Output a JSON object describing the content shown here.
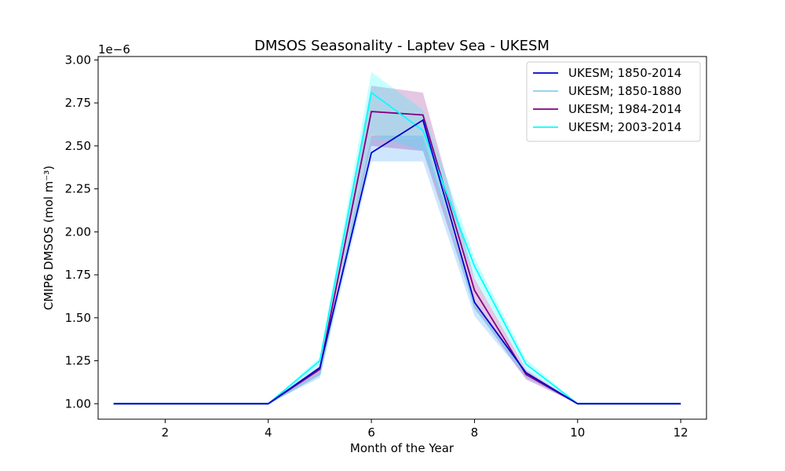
{
  "chart_data": {
    "type": "line",
    "title": "DMSOS Seasonality - Laptev Sea - UKESM",
    "xlabel": "Month of the Year",
    "ylabel": "CMIP6 DMSOS (mol m⁻³)",
    "y_offset_label": "1e−6",
    "xlim": [
      0.7,
      12.5
    ],
    "ylim": [
      0.91,
      3.02
    ],
    "xticks": [
      2,
      4,
      6,
      8,
      10,
      12
    ],
    "yticks": [
      1.0,
      1.25,
      1.5,
      1.75,
      2.0,
      2.25,
      2.5,
      2.75,
      3.0
    ],
    "ytick_labels": [
      "1.00",
      "1.25",
      "1.50",
      "1.75",
      "2.00",
      "2.25",
      "2.50",
      "2.75",
      "3.00"
    ],
    "legend_position": "top-right",
    "grid": false,
    "x": [
      1,
      2,
      3,
      4,
      5,
      6,
      7,
      8,
      9,
      10,
      11,
      12
    ],
    "series": [
      {
        "name": "UKESM; 1850-1880",
        "color": "#87ceeb",
        "band_color": "#1e90ff",
        "values": [
          1.0,
          1.0,
          1.0,
          1.0,
          1.17,
          2.54,
          2.55,
          1.56,
          1.17,
          1.0,
          1.0,
          1.0
        ],
        "lower": [
          1.0,
          1.0,
          1.0,
          1.0,
          1.15,
          2.41,
          2.41,
          1.51,
          1.15,
          1.0,
          1.0,
          1.0
        ],
        "upper": [
          1.0,
          1.0,
          1.0,
          1.0,
          1.2,
          2.56,
          2.56,
          1.6,
          1.19,
          1.0,
          1.0,
          1.0
        ]
      },
      {
        "name": "UKESM; 1984-2014",
        "color": "#800080",
        "band_color": "#800080",
        "values": [
          1.0,
          1.0,
          1.0,
          1.0,
          1.2,
          2.7,
          2.68,
          1.66,
          1.17,
          1.0,
          1.0,
          1.0
        ],
        "lower": [
          1.0,
          1.0,
          1.0,
          1.0,
          1.17,
          2.5,
          2.47,
          1.56,
          1.14,
          1.0,
          1.0,
          1.0
        ],
        "upper": [
          1.0,
          1.0,
          1.0,
          1.0,
          1.22,
          2.85,
          2.81,
          1.73,
          1.2,
          1.0,
          1.0,
          1.0
        ]
      },
      {
        "name": "UKESM; 2003-2014",
        "color": "#00ffff",
        "band_color": "#00ffff",
        "values": [
          1.0,
          1.0,
          1.0,
          1.0,
          1.25,
          2.81,
          2.59,
          1.8,
          1.23,
          1.0,
          1.0,
          1.0
        ],
        "lower": [
          1.0,
          1.0,
          1.0,
          1.0,
          1.22,
          2.57,
          2.47,
          1.73,
          1.2,
          1.0,
          1.0,
          1.0
        ],
        "upper": [
          1.0,
          1.0,
          1.0,
          1.0,
          1.27,
          2.93,
          2.71,
          1.85,
          1.26,
          1.0,
          1.0,
          1.0
        ]
      },
      {
        "name": "UKESM; 1850-2014",
        "color": "#0000cd",
        "band_color": "#0000cd",
        "values": [
          1.0,
          1.0,
          1.0,
          1.0,
          1.21,
          2.46,
          2.65,
          1.59,
          1.18,
          1.0,
          1.0,
          1.0
        ],
        "lower": null,
        "upper": null
      }
    ],
    "legend_order": [
      "UKESM; 1850-2014",
      "UKESM; 1850-1880",
      "UKESM; 1984-2014",
      "UKESM; 2003-2014"
    ]
  }
}
